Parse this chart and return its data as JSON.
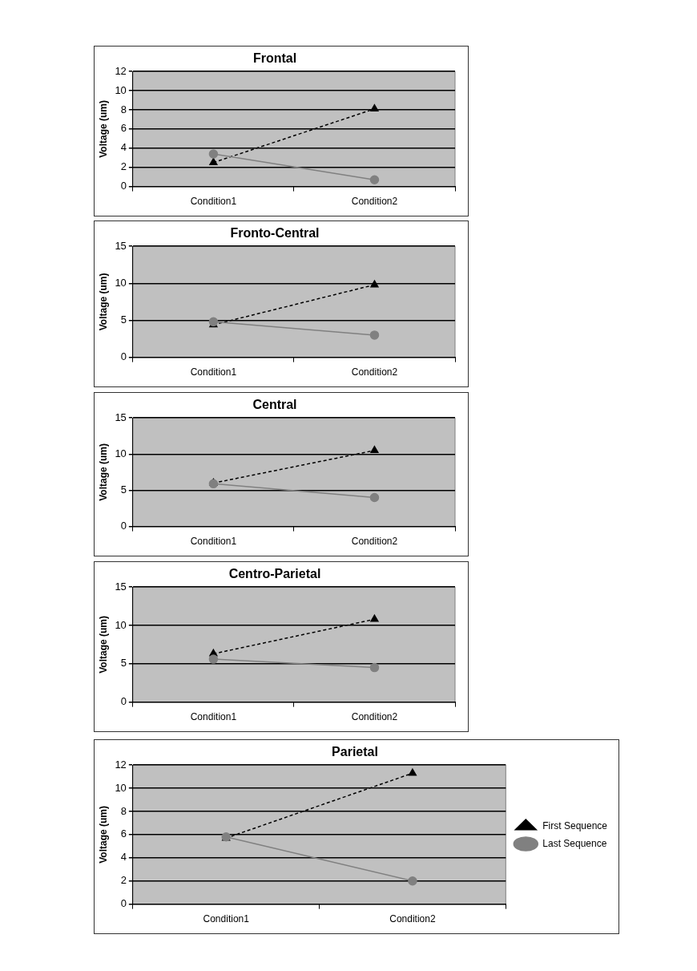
{
  "chart_data": [
    {
      "type": "line",
      "title": "Frontal",
      "ylabel": "Voltage (um)",
      "categories": [
        "Condition1",
        "Condition2"
      ],
      "ylim": [
        0,
        12
      ],
      "yticks": [
        0,
        2,
        4,
        6,
        8,
        10,
        12
      ],
      "grid": "y",
      "legend": false,
      "series": [
        {
          "color": "#000000",
          "marker": "triangle",
          "line_style": "dashed",
          "values": [
            2.5,
            8.1
          ]
        },
        {
          "color": "#808080",
          "marker": "circle",
          "line_style": "solid",
          "values": [
            3.4,
            0.7
          ]
        }
      ]
    },
    {
      "type": "line",
      "title": "Fronto-Central",
      "ylabel": "Voltage (um)",
      "categories": [
        "Condition1",
        "Condition2"
      ],
      "ylim": [
        0,
        15
      ],
      "yticks": [
        0,
        5,
        10,
        15
      ],
      "grid": "y",
      "legend": false,
      "series": [
        {
          "color": "#000000",
          "marker": "triangle",
          "line_style": "dashed",
          "values": [
            4.4,
            9.8
          ]
        },
        {
          "color": "#808080",
          "marker": "circle",
          "line_style": "solid",
          "values": [
            4.8,
            3.0
          ]
        }
      ]
    },
    {
      "type": "line",
      "title": "Central",
      "ylabel": "Voltage (um)",
      "categories": [
        "Condition1",
        "Condition2"
      ],
      "ylim": [
        0,
        15
      ],
      "yticks": [
        0,
        5,
        10,
        15
      ],
      "grid": "y",
      "legend": false,
      "series": [
        {
          "color": "#000000",
          "marker": "triangle",
          "line_style": "dashed",
          "values": [
            6.0,
            10.5
          ]
        },
        {
          "color": "#808080",
          "marker": "circle",
          "line_style": "solid",
          "values": [
            5.9,
            4.0
          ]
        }
      ]
    },
    {
      "type": "line",
      "title": "Centro-Parietal",
      "ylabel": "Voltage (um)",
      "categories": [
        "Condition1",
        "Condition2"
      ],
      "ylim": [
        0,
        15
      ],
      "yticks": [
        0,
        5,
        10,
        15
      ],
      "grid": "y",
      "legend": false,
      "series": [
        {
          "color": "#000000",
          "marker": "triangle",
          "line_style": "dashed",
          "values": [
            6.3,
            10.8
          ]
        },
        {
          "color": "#808080",
          "marker": "circle",
          "line_style": "solid",
          "values": [
            5.6,
            4.5
          ]
        }
      ]
    },
    {
      "type": "line",
      "title": "Parietal",
      "ylabel": "Voltage (um)",
      "categories": [
        "Condition1",
        "Condition2"
      ],
      "ylim": [
        0,
        12
      ],
      "yticks": [
        0,
        2,
        4,
        6,
        8,
        10,
        12
      ],
      "grid": "y",
      "legend": "right",
      "series": [
        {
          "name": "First Sequence",
          "color": "#000000",
          "marker": "triangle",
          "line_style": "dashed",
          "values": [
            5.7,
            11.3
          ]
        },
        {
          "name": "Last Sequence",
          "color": "#808080",
          "marker": "circle",
          "line_style": "solid",
          "values": [
            5.8,
            2.0
          ]
        }
      ]
    }
  ]
}
